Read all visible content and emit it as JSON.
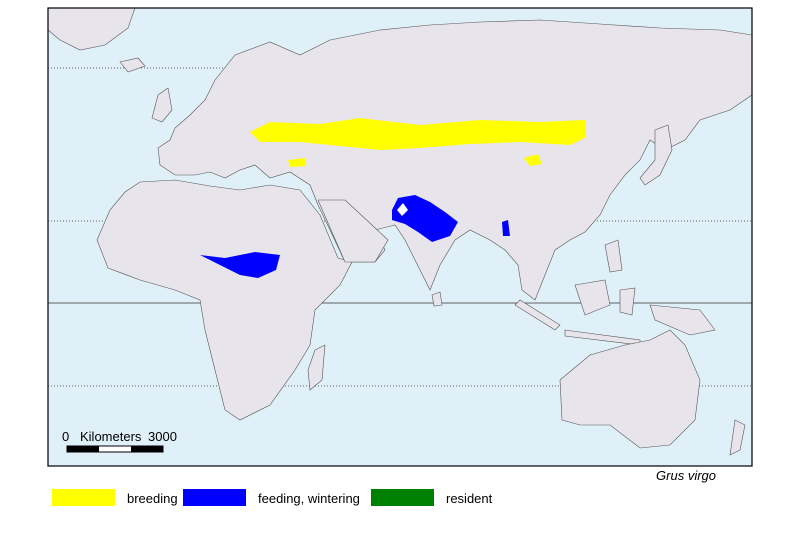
{
  "map": {
    "species": "Grus virgo",
    "scale_bar": {
      "start": 0,
      "unit": "Kilometers",
      "end": 3000
    },
    "legend": [
      {
        "label": "breeding",
        "color": "#ffff00"
      },
      {
        "label": "feeding, wintering",
        "color": "#0000ff"
      },
      {
        "label": "resident",
        "color": "#008000"
      }
    ]
  }
}
